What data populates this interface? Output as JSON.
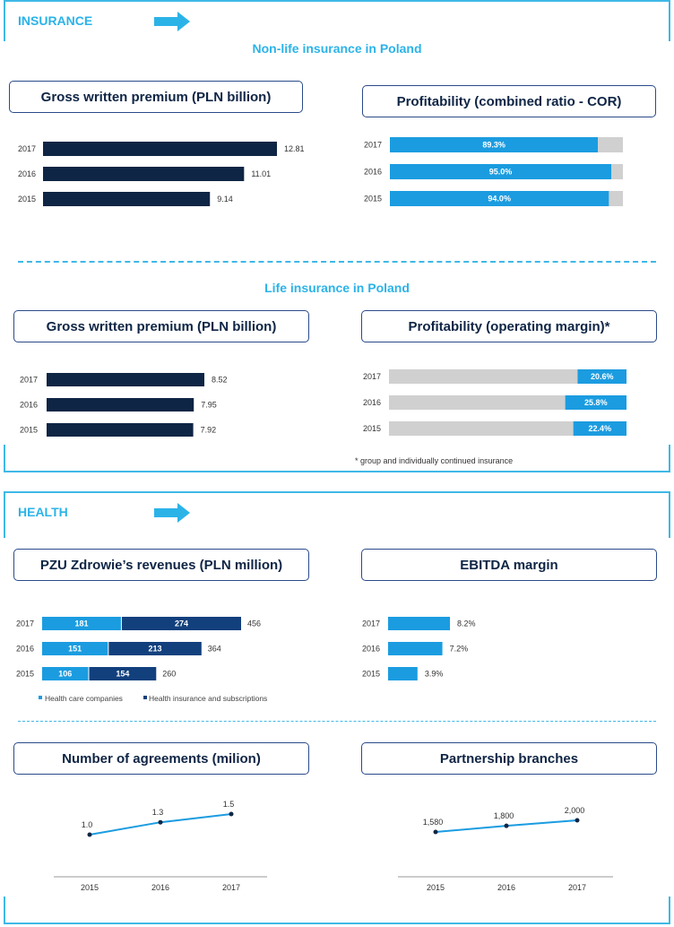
{
  "sections": {
    "insurance": {
      "title": "INSURANCE"
    },
    "health": {
      "title": "HEALTH"
    }
  },
  "nonlife": {
    "subtitle": "Non-life insurance in Poland",
    "gwp_title": "Gross written premium (PLN billion)",
    "cor_title": "Profitability (combined ratio - COR)"
  },
  "life": {
    "subtitle": "Life insurance in Poland",
    "gwp_title": "Gross written premium (PLN billion)",
    "margin_title": "Profitability (operating margin)*",
    "footnote": "* group and individually continued insurance"
  },
  "health": {
    "rev_title": "PZU Zdrowie’s revenues (PLN million)",
    "ebitda_title": "EBITDA margin",
    "agreements_title": "Number of agreements  (milion)",
    "branches_title": "Partnership branches"
  },
  "colors": {
    "navy": "#0f2545",
    "blue": "#1b9ce0",
    "darkblue": "#12407d",
    "gray": "#d0d0d0",
    "accent": "#2bb3e8"
  },
  "chart_data": [
    {
      "id": "nonlife_gwp",
      "type": "bar",
      "categories": [
        "2017",
        "2016",
        "2015"
      ],
      "values": [
        12.81,
        11.01,
        9.14
      ],
      "labels": [
        "12.81",
        "11.01",
        "9.14"
      ]
    },
    {
      "id": "nonlife_cor",
      "type": "bar",
      "categories": [
        "2017",
        "2016",
        "2015"
      ],
      "values": [
        89.3,
        95.0,
        94.0
      ],
      "labels": [
        "89.3%",
        "95.0%",
        "94.0%"
      ]
    },
    {
      "id": "life_gwp",
      "type": "bar",
      "categories": [
        "2017",
        "2016",
        "2015"
      ],
      "values": [
        8.52,
        7.95,
        7.92
      ],
      "labels": [
        "8.52",
        "7.95",
        "7.92"
      ]
    },
    {
      "id": "life_margin",
      "type": "bar",
      "categories": [
        "2017",
        "2016",
        "2015"
      ],
      "values": [
        20.6,
        25.8,
        22.4
      ],
      "labels": [
        "20.6%",
        "25.8%",
        "22.4%"
      ]
    },
    {
      "id": "health_rev",
      "type": "bar",
      "stacked": true,
      "categories": [
        "2017",
        "2016",
        "2015"
      ],
      "series": [
        {
          "name": "Health care companies",
          "values": [
            181,
            151,
            106
          ]
        },
        {
          "name": "Health insurance and subscriptions",
          "values": [
            274,
            213,
            154
          ]
        }
      ],
      "totals": [
        "456",
        "364",
        "260"
      ]
    },
    {
      "id": "ebitda",
      "type": "bar",
      "categories": [
        "2017",
        "2016",
        "2015"
      ],
      "values": [
        8.2,
        7.2,
        3.9
      ],
      "labels": [
        "8.2%",
        "7.2%",
        "3.9%"
      ]
    },
    {
      "id": "agreements",
      "type": "line",
      "x": [
        "2015",
        "2016",
        "2017"
      ],
      "values": [
        1.0,
        1.3,
        1.5
      ],
      "labels": [
        "1.0",
        "1.3",
        "1.5"
      ]
    },
    {
      "id": "branches",
      "type": "line",
      "x": [
        "2015",
        "2016",
        "2017"
      ],
      "values": [
        1580,
        1800,
        2000
      ],
      "labels": [
        "1,580",
        "1,800",
        "2,000"
      ]
    }
  ]
}
